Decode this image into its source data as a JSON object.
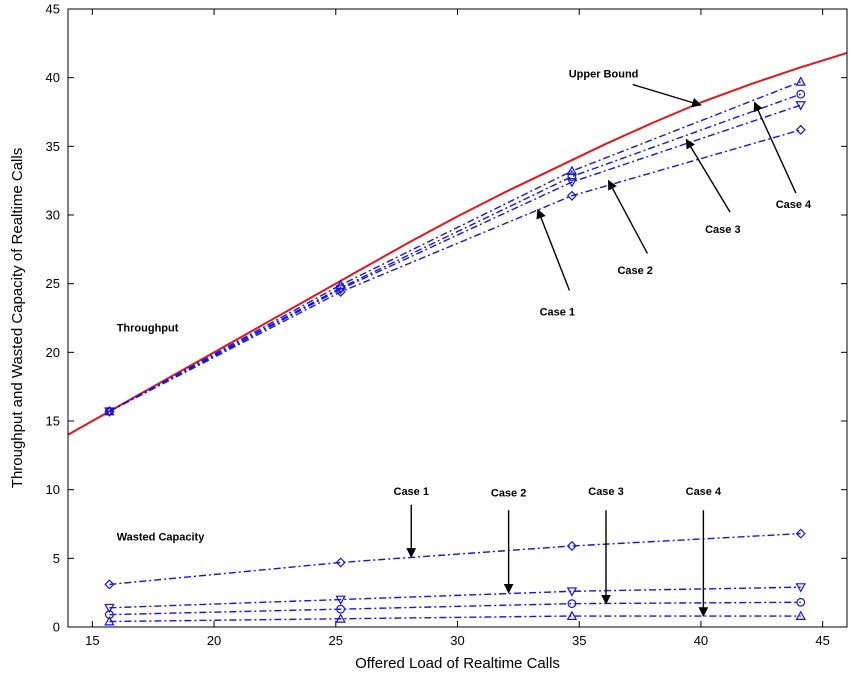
{
  "chart_data": {
    "type": "line",
    "title": "",
    "xlabel": "Offered Load of Realtime Calls",
    "ylabel": "Throughput and Wasted Capacity of Realtime Calls",
    "xlim": [
      14,
      46
    ],
    "ylim": [
      0,
      45
    ],
    "xticks": [
      "15",
      "20",
      "25",
      "30",
      "35",
      "40",
      "45"
    ],
    "yticks": [
      "0",
      "5",
      "10",
      "15",
      "20",
      "25",
      "30",
      "35",
      "40",
      "45"
    ],
    "grid": false,
    "upper_bound": {
      "color": "#e8141c",
      "x": [
        14,
        15,
        16,
        18,
        20,
        22,
        24,
        25,
        26,
        28,
        30,
        32,
        34,
        36,
        38,
        40,
        42,
        44,
        46
      ],
      "y": [
        14,
        15,
        16,
        18,
        20,
        22,
        24,
        25,
        26,
        28,
        29.9,
        31.7,
        33.4,
        35.1,
        36.7,
        38.2,
        39.5,
        40.7,
        41.8
      ]
    },
    "series": [
      {
        "group": "throughput",
        "marker": "diamond",
        "color": "#1414e6",
        "x": [
          15.7,
          25.2,
          34.7,
          44.1
        ],
        "y": [
          15.7,
          24.4,
          31.4,
          36.2
        ]
      },
      {
        "group": "throughput",
        "marker": "triangle-down",
        "color": "#1414e6",
        "x": [
          15.7,
          25.2,
          34.7,
          44.1
        ],
        "y": [
          15.7,
          24.6,
          32.4,
          38.0
        ]
      },
      {
        "group": "throughput",
        "marker": "circle",
        "color": "#1414e6",
        "x": [
          15.7,
          25.2,
          34.7,
          44.1
        ],
        "y": [
          15.7,
          24.7,
          32.8,
          38.8
        ]
      },
      {
        "group": "throughput",
        "marker": "triangle-up",
        "color": "#1414e6",
        "x": [
          15.7,
          25.2,
          34.7,
          44.1
        ],
        "y": [
          15.7,
          24.9,
          33.2,
          39.7
        ]
      },
      {
        "group": "wasted",
        "marker": "diamond",
        "color": "#1414e6",
        "x": [
          15.7,
          25.2,
          34.7,
          44.1
        ],
        "y": [
          3.1,
          4.7,
          5.9,
          6.8
        ]
      },
      {
        "group": "wasted",
        "marker": "triangle-down",
        "color": "#1414e6",
        "x": [
          15.7,
          25.2,
          34.7,
          44.1
        ],
        "y": [
          1.4,
          2.0,
          2.6,
          2.9
        ]
      },
      {
        "group": "wasted",
        "marker": "circle",
        "color": "#1414e6",
        "x": [
          15.7,
          25.2,
          34.7,
          44.1
        ],
        "y": [
          0.9,
          1.3,
          1.7,
          1.8
        ]
      },
      {
        "group": "wasted",
        "marker": "triangle-up",
        "color": "#1414e6",
        "x": [
          15.7,
          25.2,
          34.7,
          44.1
        ],
        "y": [
          0.4,
          0.6,
          0.8,
          0.8
        ]
      }
    ],
    "annotations": [
      {
        "text": "Upper Bound",
        "text_xy": [
          36.0,
          40.0
        ],
        "arrow_from": [
          37.2,
          39.5
        ],
        "arrow_to": [
          40.0,
          38.0
        ]
      },
      {
        "text": "Case 1",
        "text_xy": [
          34.1,
          22.7
        ],
        "arrow_from": [
          34.6,
          24.5
        ],
        "arrow_to": [
          33.3,
          30.4
        ]
      },
      {
        "text": "Case 2",
        "text_xy": [
          37.3,
          25.7
        ],
        "arrow_from": [
          37.8,
          27.2
        ],
        "arrow_to": [
          36.2,
          32.5
        ]
      },
      {
        "text": "Case 3",
        "text_xy": [
          40.9,
          28.7
        ],
        "arrow_from": [
          41.2,
          30.2
        ],
        "arrow_to": [
          39.4,
          35.5
        ]
      },
      {
        "text": "Case 4",
        "text_xy": [
          43.8,
          30.5
        ],
        "arrow_from": [
          43.9,
          31.6
        ],
        "arrow_to": [
          42.2,
          38.2
        ]
      },
      {
        "text": "Throughput",
        "text_xy": [
          16.0,
          21.5
        ]
      },
      {
        "text": "Wasted Capacity",
        "text_xy": [
          16.0,
          6.3
        ]
      },
      {
        "text": "Case 1",
        "text_xy": [
          28.1,
          9.6
        ],
        "arrow_from": [
          28.1,
          8.9
        ],
        "arrow_to": [
          28.1,
          5.1
        ]
      },
      {
        "text": "Case 2",
        "text_xy": [
          32.1,
          9.5
        ],
        "arrow_from": [
          32.1,
          8.5
        ],
        "arrow_to": [
          32.1,
          2.5
        ]
      },
      {
        "text": "Case 3",
        "text_xy": [
          36.1,
          9.6
        ],
        "arrow_from": [
          36.1,
          8.5
        ],
        "arrow_to": [
          36.1,
          1.7
        ]
      },
      {
        "text": "Case 4",
        "text_xy": [
          40.1,
          9.6
        ],
        "arrow_from": [
          40.1,
          8.5
        ],
        "arrow_to": [
          40.1,
          0.8
        ]
      }
    ]
  }
}
